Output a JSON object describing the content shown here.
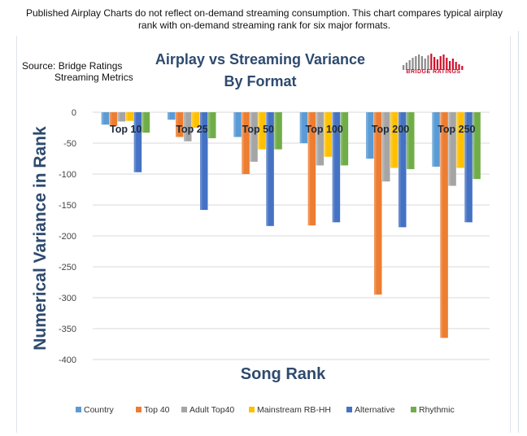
{
  "caption": "Published Airplay Charts do not reflect on-demand streaming consumption. This chart compares typical airplay rank with on-demand streaming rank for six major formats.",
  "source_line1": "Source:  Bridge Ratings",
  "source_line2": "Streaming Metrics",
  "logo_text": "BRIDGE RATINGS",
  "chart_data": {
    "type": "bar",
    "title": "Airplay vs Streaming Variance",
    "subtitle": "By Format",
    "xlabel": "Song Rank",
    "ylabel": "Numerical Variance in Rank",
    "ylim": [
      -400,
      0
    ],
    "yticks": [
      0,
      -50,
      -100,
      -150,
      -200,
      -250,
      -300,
      -350,
      -400
    ],
    "grid": true,
    "legend_position": "bottom",
    "categories": [
      "Top 10",
      "Top 25",
      "Top 50",
      "Top 100",
      "Top 200",
      "Top 250"
    ],
    "series": [
      {
        "name": "Country",
        "color": "#5b9bd5",
        "values": [
          -20,
          -12,
          -40,
          -50,
          -75,
          -88
        ]
      },
      {
        "name": "Top 40",
        "color": "#ed7d31",
        "values": [
          -22,
          -40,
          -100,
          -183,
          -295,
          -365
        ]
      },
      {
        "name": "Adult Top40",
        "color": "#a5a5a5",
        "values": [
          -15,
          -47,
          -80,
          -86,
          -112,
          -119
        ]
      },
      {
        "name": "Mainstream RB-HH",
        "color": "#ffc000",
        "values": [
          -14,
          -25,
          -60,
          -72,
          -90,
          -90
        ]
      },
      {
        "name": "Alternative",
        "color": "#4472c4",
        "values": [
          -97,
          -158,
          -184,
          -178,
          -186,
          -178
        ]
      },
      {
        "name": "Rhythmic",
        "color": "#70ad47",
        "values": [
          -33,
          -42,
          -60,
          -86,
          -92,
          -108
        ]
      }
    ]
  }
}
